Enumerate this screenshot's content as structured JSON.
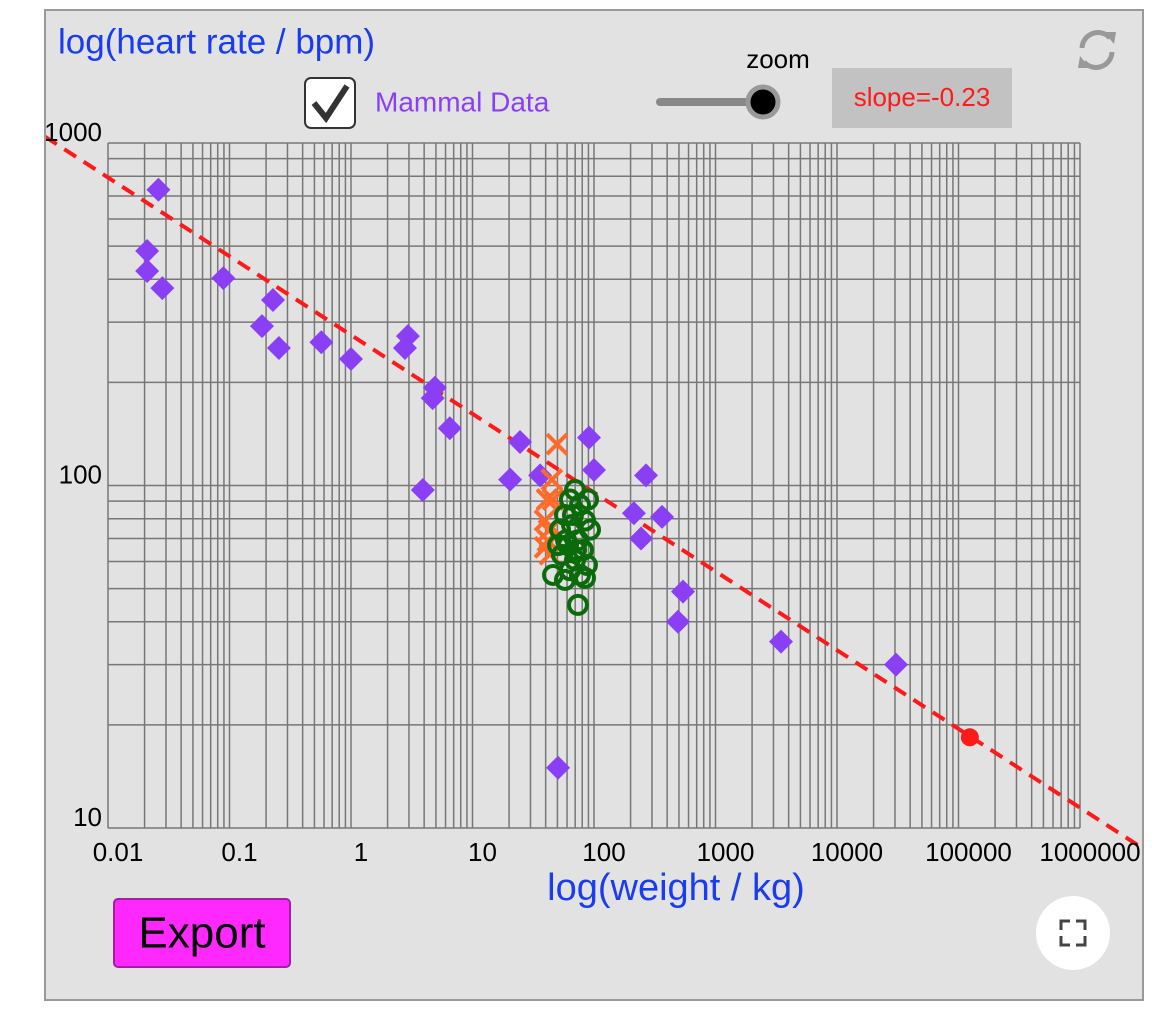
{
  "chart_data": {
    "type": "scatter",
    "title": "log(heart rate / bpm)",
    "x_label": "log(weight / kg)",
    "zoom_label": "zoom",
    "checkbox_label": "Mammal Data",
    "slope_label": "slope=-0.23",
    "export_label": "Export",
    "x_log": true,
    "y_log": true,
    "grid": true,
    "xlim": [
      0.01,
      1000000
    ],
    "ylim": [
      10,
      1000
    ],
    "xticks": [
      0.01,
      0.1,
      1,
      10,
      100,
      1000,
      10000,
      100000,
      1000000
    ],
    "yticks": [
      10,
      100,
      1000
    ],
    "fit": {
      "slope": -0.23,
      "value_at_1": 275,
      "color": "#ff1a1a"
    },
    "series": [
      {
        "name": "Mammal Data",
        "marker": "diamond",
        "color": "#8a3ff5",
        "x": [
          0.026,
          0.021,
          0.021,
          0.028,
          0.089,
          0.228,
          0.185,
          0.255,
          0.57,
          1.0,
          2.94,
          2.78,
          4.9,
          4.7,
          6.5,
          3.9,
          24.6,
          20.4,
          36,
          91,
          100,
          268,
          213,
          363,
          244,
          540,
          491,
          3460,
          30600,
          50.6
        ],
        "values": [
          730,
          484,
          423,
          377,
          403,
          348,
          292,
          252,
          262,
          234,
          273,
          252,
          193,
          180,
          147,
          97,
          134,
          104,
          107,
          138,
          111,
          107,
          83,
          81,
          70,
          49,
          40,
          35,
          30,
          15
        ]
      },
      {
        "marker": "cross",
        "color": "#ff6a2a",
        "x": [
          49.6,
          39.5,
          41.8,
          43.4,
          46,
          41,
          45,
          42.6,
          39.5
        ],
        "values": [
          132,
          79,
          69,
          63,
          91,
          91,
          104,
          74,
          66
        ]
      },
      {
        "marker": "circle",
        "color": "#0b6b0b",
        "x": [
          69.8,
          63.4,
          76.7,
          57.7,
          84.3,
          65.9,
          52.5,
          92.7,
          73.8,
          61.1,
          81.1,
          54.5,
          69.8,
          87.5,
          63.4,
          76.7,
          46.0,
          57.7,
          84.3,
          73.8,
          67.1,
          89.3,
          58.9,
          71.1,
          50.6
        ],
        "values": [
          97,
          91,
          87.7,
          82,
          79,
          76.7,
          74.3,
          74.3,
          69.2,
          67,
          64.8,
          62.7,
          60.6,
          58.6,
          56.6,
          54.8,
          54.8,
          53,
          53.7,
          44.8,
          82,
          91,
          69.2,
          64.8,
          67
        ]
      },
      {
        "marker": "dot",
        "color": "#ff1a1a",
        "x": [
          124000
        ],
        "values": [
          18.4
        ]
      }
    ]
  }
}
